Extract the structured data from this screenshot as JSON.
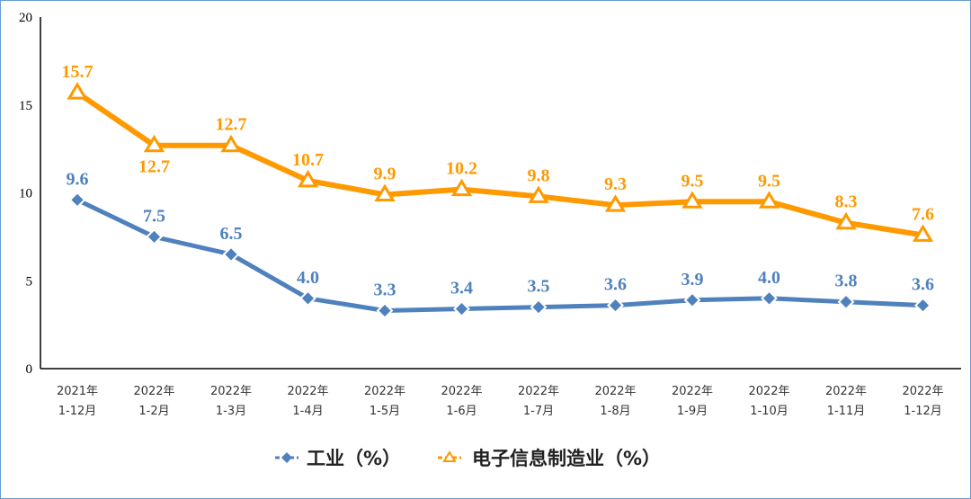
{
  "chart_data": {
    "type": "line",
    "categories": [
      [
        "2021年",
        "1-12月"
      ],
      [
        "2022年",
        "1-2月"
      ],
      [
        "2022年",
        "1-3月"
      ],
      [
        "2022年",
        "1-4月"
      ],
      [
        "2022年",
        "1-5月"
      ],
      [
        "2022年",
        "1-6月"
      ],
      [
        "2022年",
        "1-7月"
      ],
      [
        "2022年",
        "1-8月"
      ],
      [
        "2022年",
        "1-9月"
      ],
      [
        "2022年",
        "1-10月"
      ],
      [
        "2022年",
        "1-11月"
      ],
      [
        "2022年",
        "1-12月"
      ]
    ],
    "ylim": [
      0,
      20
    ],
    "yticks": [
      0,
      5,
      10,
      15,
      20
    ],
    "grid": false,
    "legend_position": "bottom",
    "series": [
      {
        "name": "工业（%）",
        "color": "#4f81bd",
        "marker": "diamond",
        "values": [
          9.6,
          7.5,
          6.5,
          4.0,
          3.3,
          3.4,
          3.5,
          3.6,
          3.9,
          4.0,
          3.8,
          3.6
        ]
      },
      {
        "name": "电子信息制造业（%）",
        "color": "#ff9900",
        "marker": "triangle",
        "values": [
          15.7,
          12.7,
          12.7,
          10.7,
          9.9,
          10.2,
          9.8,
          9.3,
          9.5,
          9.5,
          8.3,
          7.6
        ]
      }
    ]
  }
}
